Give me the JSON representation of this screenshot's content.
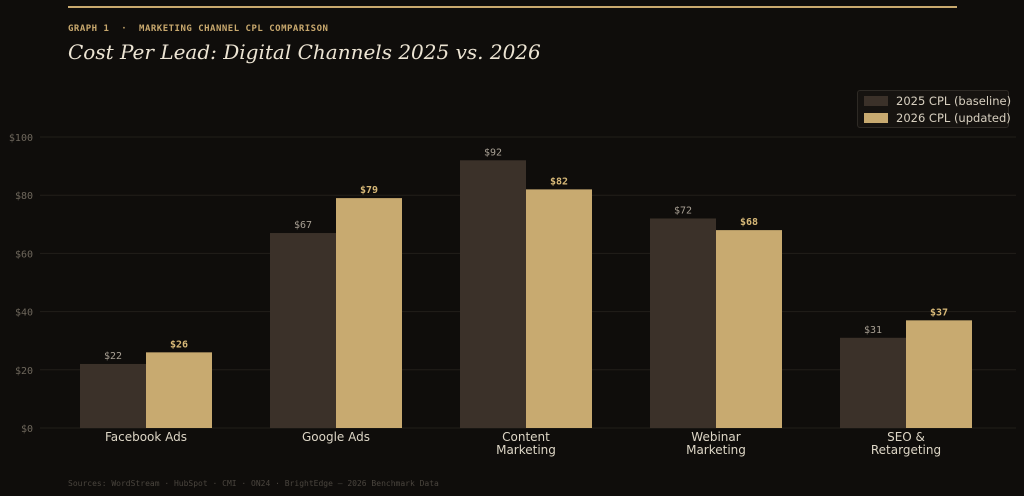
{
  "header": {
    "eyebrow": "GRAPH 1  ·  MARKETING CHANNEL CPL COMPARISON",
    "title": "Cost Per Lead: Digital Channels 2025 vs. 2026"
  },
  "footer": {
    "sources": "Sources: WordStream · HubSpot · CMI · ON24 · BrightEdge — 2026 Benchmark Data"
  },
  "colors": {
    "background": "#0f0d0b",
    "accent": "#c9a96e",
    "series_2025": "#3b3129",
    "series_2026": "#c8aa70",
    "grid": "#221e1a"
  },
  "chart_data": {
    "type": "bar",
    "title": "Cost Per Lead: Digital Channels 2025 vs. 2026",
    "xlabel": "",
    "ylabel": "",
    "categories": [
      [
        "Facebook Ads"
      ],
      [
        "Google Ads"
      ],
      [
        "Content",
        "Marketing"
      ],
      [
        "Webinar",
        "Marketing"
      ],
      [
        "SEO &",
        "Retargeting"
      ]
    ],
    "series": [
      {
        "name": "2025 CPL (baseline)",
        "values": [
          22,
          67,
          92,
          72,
          31
        ],
        "labels": [
          "$22",
          "$67",
          "$92",
          "$72",
          "$31"
        ]
      },
      {
        "name": "2026 CPL (updated)",
        "values": [
          26,
          79,
          82,
          68,
          37
        ],
        "labels": [
          "$26",
          "$79",
          "$82",
          "$68",
          "$37"
        ]
      }
    ],
    "ylim": [
      0,
      100
    ],
    "yticks": [
      0,
      20,
      40,
      60,
      80,
      100
    ],
    "ytick_labels": [
      "$0",
      "$20",
      "$40",
      "$60",
      "$80",
      "$100"
    ],
    "grid": true,
    "legend_position": "top-right"
  }
}
